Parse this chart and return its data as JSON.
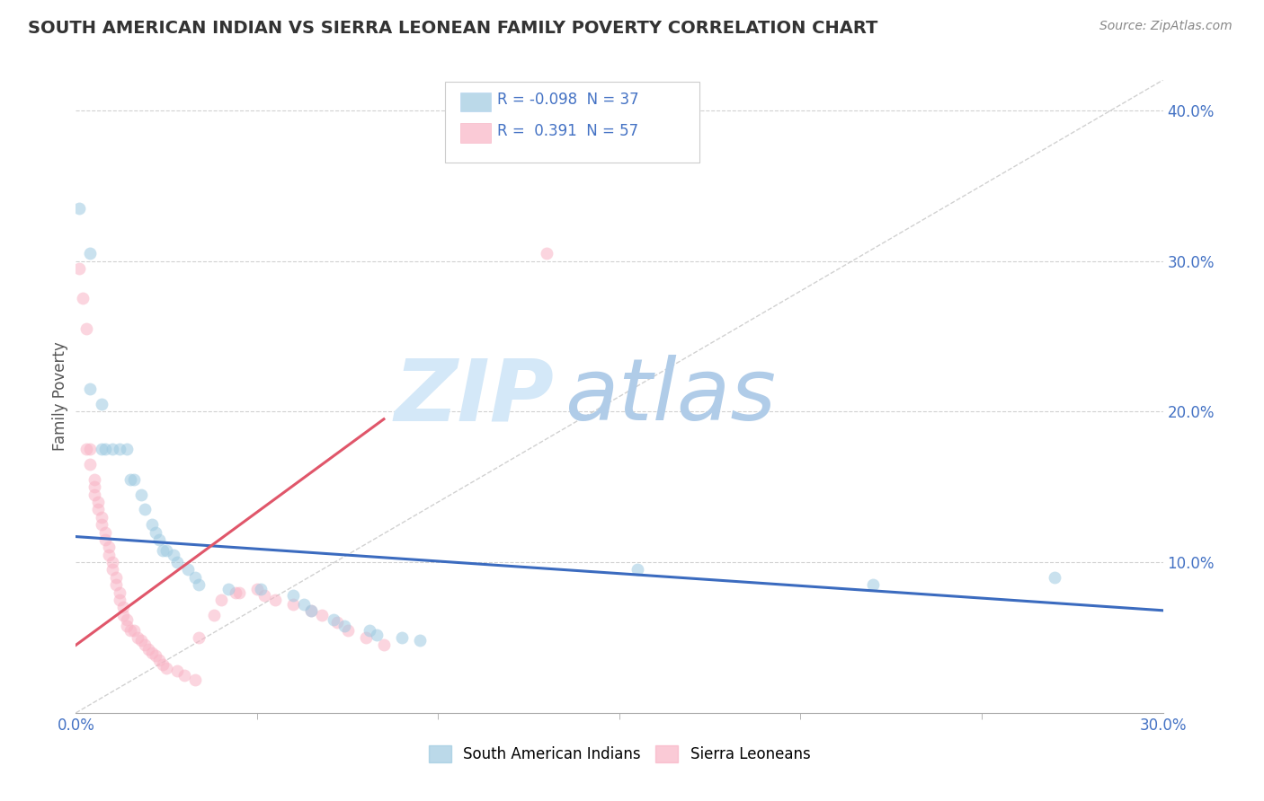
{
  "title": "SOUTH AMERICAN INDIAN VS SIERRA LEONEAN FAMILY POVERTY CORRELATION CHART",
  "source": "Source: ZipAtlas.com",
  "ylabel": "Family Poverty",
  "xlim": [
    0.0,
    0.3
  ],
  "ylim": [
    0.0,
    0.42
  ],
  "legend_r_blue": "-0.098",
  "legend_n_blue": "37",
  "legend_r_pink": "0.391",
  "legend_n_pink": "57",
  "watermark_zip": "ZIP",
  "watermark_atlas": "atlas",
  "blue_scatter": [
    [
      0.001,
      0.335
    ],
    [
      0.004,
      0.305
    ],
    [
      0.004,
      0.215
    ],
    [
      0.007,
      0.205
    ],
    [
      0.007,
      0.175
    ],
    [
      0.008,
      0.175
    ],
    [
      0.01,
      0.175
    ],
    [
      0.012,
      0.175
    ],
    [
      0.014,
      0.175
    ],
    [
      0.015,
      0.155
    ],
    [
      0.016,
      0.155
    ],
    [
      0.018,
      0.145
    ],
    [
      0.019,
      0.135
    ],
    [
      0.021,
      0.125
    ],
    [
      0.022,
      0.12
    ],
    [
      0.023,
      0.115
    ],
    [
      0.024,
      0.108
    ],
    [
      0.025,
      0.108
    ],
    [
      0.027,
      0.105
    ],
    [
      0.028,
      0.1
    ],
    [
      0.031,
      0.095
    ],
    [
      0.033,
      0.09
    ],
    [
      0.034,
      0.085
    ],
    [
      0.042,
      0.082
    ],
    [
      0.051,
      0.082
    ],
    [
      0.06,
      0.078
    ],
    [
      0.063,
      0.072
    ],
    [
      0.065,
      0.068
    ],
    [
      0.071,
      0.062
    ],
    [
      0.074,
      0.058
    ],
    [
      0.081,
      0.055
    ],
    [
      0.083,
      0.052
    ],
    [
      0.09,
      0.05
    ],
    [
      0.095,
      0.048
    ],
    [
      0.155,
      0.095
    ],
    [
      0.22,
      0.085
    ],
    [
      0.27,
      0.09
    ]
  ],
  "pink_scatter": [
    [
      0.001,
      0.295
    ],
    [
      0.002,
      0.275
    ],
    [
      0.003,
      0.255
    ],
    [
      0.003,
      0.175
    ],
    [
      0.004,
      0.175
    ],
    [
      0.004,
      0.165
    ],
    [
      0.005,
      0.155
    ],
    [
      0.005,
      0.15
    ],
    [
      0.005,
      0.145
    ],
    [
      0.006,
      0.14
    ],
    [
      0.006,
      0.135
    ],
    [
      0.007,
      0.13
    ],
    [
      0.007,
      0.125
    ],
    [
      0.008,
      0.12
    ],
    [
      0.008,
      0.115
    ],
    [
      0.009,
      0.11
    ],
    [
      0.009,
      0.105
    ],
    [
      0.01,
      0.1
    ],
    [
      0.01,
      0.095
    ],
    [
      0.011,
      0.09
    ],
    [
      0.011,
      0.085
    ],
    [
      0.012,
      0.08
    ],
    [
      0.012,
      0.075
    ],
    [
      0.013,
      0.07
    ],
    [
      0.013,
      0.065
    ],
    [
      0.014,
      0.062
    ],
    [
      0.014,
      0.058
    ],
    [
      0.015,
      0.055
    ],
    [
      0.016,
      0.055
    ],
    [
      0.017,
      0.05
    ],
    [
      0.018,
      0.048
    ],
    [
      0.019,
      0.045
    ],
    [
      0.02,
      0.042
    ],
    [
      0.021,
      0.04
    ],
    [
      0.022,
      0.038
    ],
    [
      0.023,
      0.035
    ],
    [
      0.024,
      0.032
    ],
    [
      0.025,
      0.03
    ],
    [
      0.028,
      0.028
    ],
    [
      0.03,
      0.025
    ],
    [
      0.033,
      0.022
    ],
    [
      0.034,
      0.05
    ],
    [
      0.038,
      0.065
    ],
    [
      0.04,
      0.075
    ],
    [
      0.044,
      0.08
    ],
    [
      0.045,
      0.08
    ],
    [
      0.05,
      0.082
    ],
    [
      0.052,
      0.078
    ],
    [
      0.055,
      0.075
    ],
    [
      0.06,
      0.072
    ],
    [
      0.065,
      0.068
    ],
    [
      0.068,
      0.065
    ],
    [
      0.072,
      0.06
    ],
    [
      0.075,
      0.055
    ],
    [
      0.08,
      0.05
    ],
    [
      0.085,
      0.045
    ],
    [
      0.13,
      0.305
    ]
  ],
  "blue_color": "#9ecae1",
  "pink_color": "#f9b4c5",
  "blue_line_color": "#3b6bbf",
  "pink_line_color": "#e0566a",
  "scatter_size": 100,
  "scatter_alpha": 0.55,
  "title_color": "#333333",
  "axis_color": "#aaaaaa",
  "grid_color": "#cccccc",
  "watermark_color": "#d4e8f8",
  "watermark_atlas_color": "#b0cce8",
  "blue_line": [
    [
      0.0,
      0.117
    ],
    [
      0.3,
      0.068
    ]
  ],
  "pink_line": [
    [
      0.0,
      0.045
    ],
    [
      0.085,
      0.195
    ]
  ]
}
